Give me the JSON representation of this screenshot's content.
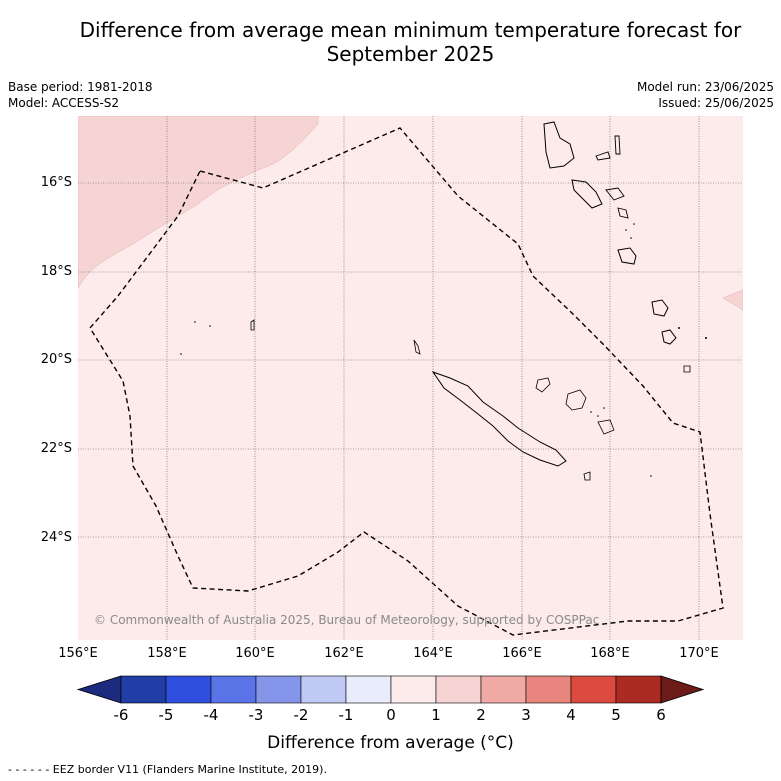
{
  "title_line1": "Difference from average mean minimum temperature forecast for",
  "title_line2": "September 2025",
  "base_period": "Base period: 1981-2018",
  "model": "Model: ACCESS-S2",
  "model_run": "Model run: 23/06/2025",
  "issued": "Issued: 25/06/2025",
  "lat_labels": [
    "16°S",
    "18°S",
    "20°S",
    "22°S",
    "24°S"
  ],
  "lon_labels": [
    "156°E",
    "158°E",
    "160°E",
    "162°E",
    "164°E",
    "166°E",
    "168°E",
    "170°E"
  ],
  "copyright": "© Commonwealth of Australia 2025, Bureau of Meteorology, supported by COSPPac",
  "colorbar": {
    "ticks": [
      "-6",
      "-5",
      "-4",
      "-3",
      "-2",
      "-1",
      "0",
      "1",
      "2",
      "3",
      "4",
      "5",
      "6"
    ],
    "colors": [
      "#1c2a80",
      "#213da6",
      "#2f4fde",
      "#5a73e6",
      "#8495ea",
      "#c0c8f4",
      "#e9ecfa",
      "#fcebea",
      "#f5d4d3",
      "#efaaa6",
      "#e8857e",
      "#da4a3f",
      "#ab2b23",
      "#6b1b18"
    ],
    "label": "Difference from average (°C)"
  },
  "footer": "- -  - -  - - EEZ border V11 (Flanders Marine Institute, 2019).",
  "legend_map": {
    "dominant_category": "0 to 1",
    "secondary_category": "1 to 2"
  }
}
